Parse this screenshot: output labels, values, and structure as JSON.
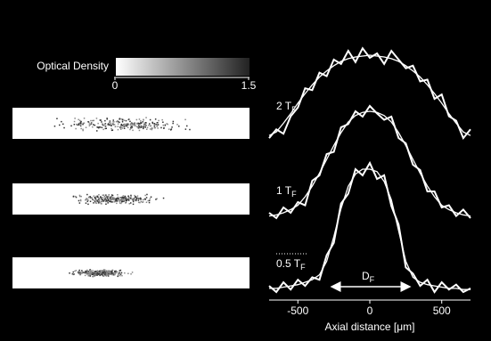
{
  "colorbar": {
    "title": "Optical Density",
    "lim": [
      0,
      1.5
    ],
    "ticks": [
      0,
      1.5
    ]
  },
  "chart_data": [
    {
      "type": "line",
      "annotation": {
        "text": "2 T",
        "subscript": "F"
      },
      "x": [
        -700,
        -650,
        -600,
        -550,
        -500,
        -450,
        -400,
        -350,
        -300,
        -250,
        -200,
        -150,
        -100,
        -50,
        0,
        50,
        100,
        150,
        200,
        250,
        300,
        350,
        400,
        450,
        500,
        550,
        600,
        650,
        700
      ],
      "xlim": [
        -700,
        700
      ],
      "ylim": [
        0,
        1
      ],
      "series": [
        {
          "color": "#ffffff",
          "values": [
            0.05,
            0.15,
            0.1,
            0.3,
            0.4,
            0.62,
            0.6,
            0.8,
            0.76,
            0.95,
            0.9,
            1.05,
            0.92,
            1.08,
            0.97,
            1.02,
            0.9,
            1.05,
            0.95,
            0.85,
            0.88,
            0.7,
            0.72,
            0.5,
            0.55,
            0.3,
            0.25,
            0.05,
            0.15
          ]
        },
        {
          "color": "#ffffff",
          "values": [
            0.08,
            0.12,
            0.22,
            0.33,
            0.45,
            0.56,
            0.66,
            0.75,
            0.82,
            0.88,
            0.93,
            0.96,
            0.98,
            0.99,
            1.0,
            0.99,
            0.98,
            0.96,
            0.93,
            0.88,
            0.82,
            0.75,
            0.66,
            0.56,
            0.45,
            0.33,
            0.22,
            0.12,
            0.08
          ]
        }
      ]
    },
    {
      "type": "line",
      "annotation": {
        "text": "1 T",
        "subscript": "F"
      },
      "x": [
        -700,
        -650,
        -600,
        -550,
        -500,
        -450,
        -400,
        -350,
        -300,
        -250,
        -200,
        -150,
        -100,
        -50,
        0,
        50,
        100,
        150,
        200,
        250,
        300,
        350,
        400,
        450,
        500,
        550,
        600,
        650,
        700
      ],
      "xlim": [
        -700,
        700
      ],
      "ylim": [
        0,
        1
      ],
      "series": [
        {
          "color": "#ffffff",
          "values": [
            0.05,
            0.0,
            0.1,
            0.05,
            0.15,
            0.12,
            0.35,
            0.4,
            0.6,
            0.62,
            0.85,
            0.88,
            1.0,
            0.95,
            1.05,
            0.98,
            0.92,
            0.95,
            0.75,
            0.7,
            0.5,
            0.45,
            0.25,
            0.25,
            0.1,
            0.12,
            0.02,
            0.08,
            0.0
          ]
        },
        {
          "color": "#ffffff",
          "values": [
            0.02,
            0.03,
            0.05,
            0.08,
            0.12,
            0.2,
            0.3,
            0.42,
            0.55,
            0.68,
            0.8,
            0.9,
            0.96,
            0.99,
            1.0,
            0.99,
            0.96,
            0.9,
            0.8,
            0.68,
            0.55,
            0.42,
            0.3,
            0.2,
            0.12,
            0.08,
            0.05,
            0.03,
            0.02
          ]
        }
      ]
    },
    {
      "type": "line",
      "annotation": {
        "text": "0.5 T",
        "subscript": "F"
      },
      "marker_label": {
        "text": "D",
        "subscript": "F"
      },
      "x": [
        -700,
        -650,
        -600,
        -550,
        -500,
        -450,
        -400,
        -350,
        -300,
        -250,
        -200,
        -150,
        -100,
        -50,
        0,
        50,
        100,
        150,
        200,
        250,
        300,
        350,
        400,
        450,
        500,
        550,
        600,
        650,
        700
      ],
      "xlim": [
        -700,
        700
      ],
      "ylim": [
        0,
        1
      ],
      "xticks": [
        -500,
        0,
        500
      ],
      "xlabel": "Axial distance [μm]",
      "series": [
        {
          "color": "#ffffff",
          "values": [
            0.05,
            0.0,
            0.08,
            0.02,
            0.1,
            0.05,
            0.12,
            0.1,
            0.3,
            0.4,
            0.72,
            0.8,
            1.0,
            0.95,
            1.05,
            0.92,
            0.95,
            0.7,
            0.55,
            0.2,
            0.15,
            0.05,
            0.1,
            0.0,
            0.08,
            0.02,
            0.06,
            0.0,
            0.03
          ]
        },
        {
          "color": "#ffffff",
          "values": [
            0.03,
            0.03,
            0.04,
            0.05,
            0.06,
            0.08,
            0.1,
            0.14,
            0.25,
            0.45,
            0.68,
            0.86,
            0.96,
            1.0,
            1.0,
            0.98,
            0.9,
            0.75,
            0.5,
            0.25,
            0.12,
            0.08,
            0.06,
            0.05,
            0.04,
            0.03,
            0.03,
            0.02,
            0.02
          ]
        }
      ]
    }
  ]
}
